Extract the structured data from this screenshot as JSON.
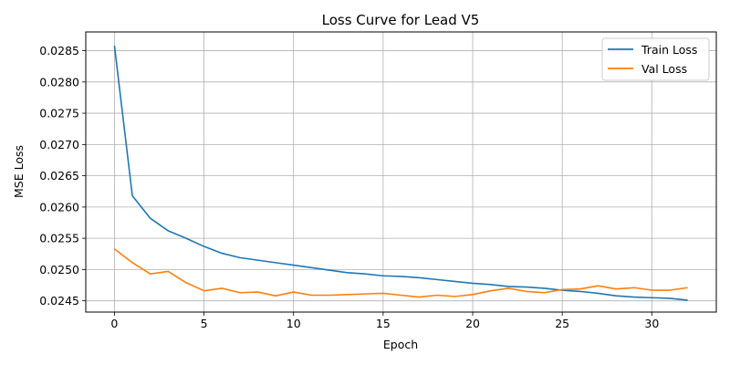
{
  "chart_data": {
    "type": "line",
    "title": "Loss Curve for Lead V5",
    "xlabel": "Epoch",
    "ylabel": "MSE Loss",
    "xlim": [
      -1.6,
      33.6
    ],
    "ylim": [
      0.02432,
      0.0288
    ],
    "xticks": [
      0,
      5,
      10,
      15,
      20,
      25,
      30
    ],
    "yticks": [
      0.0245,
      0.025,
      0.0255,
      0.026,
      0.0265,
      0.027,
      0.0275,
      0.028,
      0.0285
    ],
    "xtick_labels": [
      "0",
      "5",
      "10",
      "15",
      "20",
      "25",
      "30"
    ],
    "ytick_labels": [
      "0.0245",
      "0.0250",
      "0.0255",
      "0.0260",
      "0.0265",
      "0.0270",
      "0.0275",
      "0.0280",
      "0.0285"
    ],
    "grid": true,
    "legend_position": "top-right",
    "x": [
      0,
      1,
      2,
      3,
      4,
      5,
      6,
      7,
      8,
      9,
      10,
      11,
      12,
      13,
      14,
      15,
      16,
      17,
      18,
      19,
      20,
      21,
      22,
      23,
      24,
      25,
      26,
      27,
      28,
      29,
      30,
      31,
      32
    ],
    "series": [
      {
        "name": "Train Loss",
        "color": "#1f77b4",
        "values": [
          0.02858,
          0.02618,
          0.02582,
          0.02562,
          0.0255,
          0.02537,
          0.02526,
          0.02519,
          0.02515,
          0.02511,
          0.02507,
          0.02503,
          0.02499,
          0.02495,
          0.02493,
          0.0249,
          0.02489,
          0.02487,
          0.02484,
          0.02481,
          0.02478,
          0.02476,
          0.02473,
          0.02472,
          0.0247,
          0.02467,
          0.02465,
          0.02462,
          0.02458,
          0.02456,
          0.02455,
          0.02454,
          0.02451
        ]
      },
      {
        "name": "Val Loss",
        "color": "#ff7f0e",
        "values": [
          0.02533,
          0.02511,
          0.02493,
          0.02497,
          0.02479,
          0.02466,
          0.0247,
          0.02463,
          0.02464,
          0.02458,
          0.02464,
          0.02459,
          0.02459,
          0.0246,
          0.02461,
          0.02462,
          0.02459,
          0.02456,
          0.02459,
          0.02457,
          0.0246,
          0.02466,
          0.0247,
          0.02465,
          0.02463,
          0.02468,
          0.02469,
          0.02474,
          0.02469,
          0.02471,
          0.02467,
          0.02467,
          0.02471
        ]
      }
    ]
  }
}
